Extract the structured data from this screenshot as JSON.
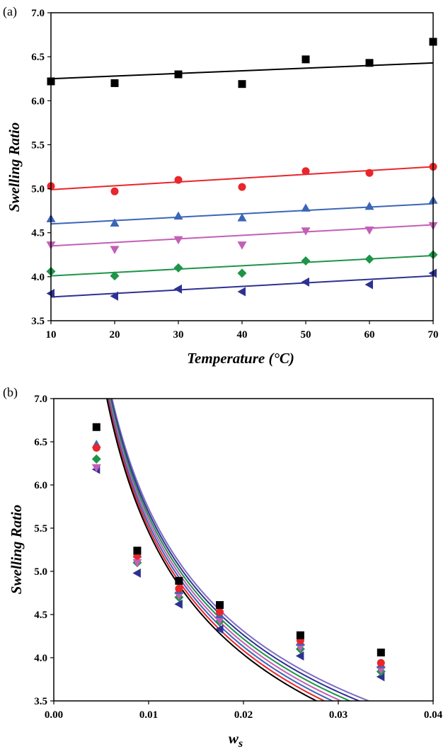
{
  "chart_data": [
    {
      "panel": "(a)",
      "type": "scatter",
      "xlabel": "Temperature (°C)",
      "ylabel": "Swelling Ratio",
      "xlim": [
        10,
        70
      ],
      "ylim": [
        3.5,
        7.0
      ],
      "xticks": [
        "10",
        "20",
        "30",
        "40",
        "50",
        "60",
        "70"
      ],
      "yticks": [
        "3.5",
        "4.0",
        "4.5",
        "5.0",
        "5.5",
        "6.0",
        "6.5",
        "7.0"
      ],
      "grid": false,
      "series": [
        {
          "marker": "square",
          "color": "#000000",
          "x": [
            10,
            20,
            30,
            40,
            50,
            60,
            70
          ],
          "y": [
            6.22,
            6.2,
            6.3,
            6.19,
            6.47,
            6.43,
            6.67
          ],
          "fit": [
            6.25,
            6.43
          ]
        },
        {
          "marker": "circle",
          "color": "#e8262b",
          "x": [
            10,
            20,
            30,
            40,
            50,
            60,
            70
          ],
          "y": [
            5.03,
            4.97,
            5.1,
            5.02,
            5.2,
            5.18,
            5.25
          ],
          "fit": [
            4.99,
            5.25
          ]
        },
        {
          "marker": "triangle-up",
          "color": "#3b66b8",
          "x": [
            10,
            20,
            30,
            40,
            50,
            60,
            70
          ],
          "y": [
            4.66,
            4.61,
            4.69,
            4.67,
            4.78,
            4.8,
            4.87
          ],
          "fit": [
            4.6,
            4.83
          ]
        },
        {
          "marker": "triangle-down",
          "color": "#c25fb6",
          "x": [
            10,
            20,
            30,
            40,
            50,
            60,
            70
          ],
          "y": [
            4.36,
            4.31,
            4.42,
            4.36,
            4.52,
            4.53,
            4.58
          ],
          "fit": [
            4.35,
            4.59
          ]
        },
        {
          "marker": "diamond",
          "color": "#1e9447",
          "x": [
            10,
            20,
            30,
            40,
            50,
            60,
            70
          ],
          "y": [
            4.06,
            4.01,
            4.1,
            4.04,
            4.18,
            4.2,
            4.25
          ],
          "fit": [
            4.01,
            4.24
          ]
        },
        {
          "marker": "triangle-left",
          "color": "#2e3192",
          "x": [
            10,
            20,
            30,
            40,
            50,
            60,
            70
          ],
          "y": [
            3.81,
            3.78,
            3.86,
            3.83,
            3.94,
            3.91,
            4.04
          ],
          "fit": [
            3.77,
            4.01
          ]
        }
      ]
    },
    {
      "panel": "(b)",
      "type": "scatter",
      "xlabel": "w",
      "xlabel_sub": "s",
      "ylabel": "Swelling Ratio",
      "xlim": [
        0,
        0.04
      ],
      "ylim": [
        3.5,
        7.0
      ],
      "xticks": [
        "0.00",
        "0.01",
        "0.02",
        "0.03",
        "0.04"
      ],
      "yticks": [
        "3.5",
        "4.0",
        "4.5",
        "5.0",
        "5.5",
        "6.0",
        "6.5",
        "7.0"
      ],
      "grid": false,
      "series": [
        {
          "marker": "square",
          "color": "#000000",
          "x": [
            0.0045,
            0.0088,
            0.0132,
            0.0175,
            0.026,
            0.0345
          ],
          "y": [
            6.67,
            5.24,
            4.89,
            4.61,
            4.26,
            4.06
          ],
          "fit_b": 0.23
        },
        {
          "marker": "circle",
          "color": "#e8262b",
          "x": [
            0.0045,
            0.0088,
            0.0132,
            0.0175,
            0.026,
            0.0345
          ],
          "y": [
            6.43,
            5.18,
            4.8,
            4.53,
            4.2,
            3.94
          ],
          "fit_b": 0.185
        },
        {
          "marker": "triangle-up",
          "color": "#3b66b8",
          "x": [
            0.0045,
            0.0088,
            0.0132,
            0.0175,
            0.026,
            0.0345
          ],
          "y": [
            6.47,
            5.2,
            4.78,
            4.5,
            4.18,
            3.92
          ],
          "fit_b": 0.14
        },
        {
          "marker": "triangle-down",
          "color": "#c25fb6",
          "x": [
            0.0045,
            0.0088,
            0.0132,
            0.0175,
            0.026,
            0.0345
          ],
          "y": [
            6.2,
            5.1,
            4.72,
            4.43,
            4.12,
            3.86
          ],
          "fit_b": 0.095
        },
        {
          "marker": "diamond",
          "color": "#1e9447",
          "x": [
            0.0045,
            0.0088,
            0.0132,
            0.0175,
            0.026,
            0.0345
          ],
          "y": [
            6.3,
            5.1,
            4.7,
            4.42,
            4.1,
            3.84
          ],
          "fit_b": 0.05
        },
        {
          "marker": "triangle-left",
          "color": "#2e3192",
          "x": [
            0.0045,
            0.0088,
            0.0132,
            0.0175,
            0.026,
            0.0345
          ],
          "y": [
            6.18,
            4.98,
            4.62,
            4.33,
            4.02,
            3.78
          ],
          "fit_b": 0.005
        }
      ],
      "extra_fit_lines": [
        {
          "color": "#7d6bc4",
          "fit_b": -0.04
        }
      ]
    }
  ]
}
